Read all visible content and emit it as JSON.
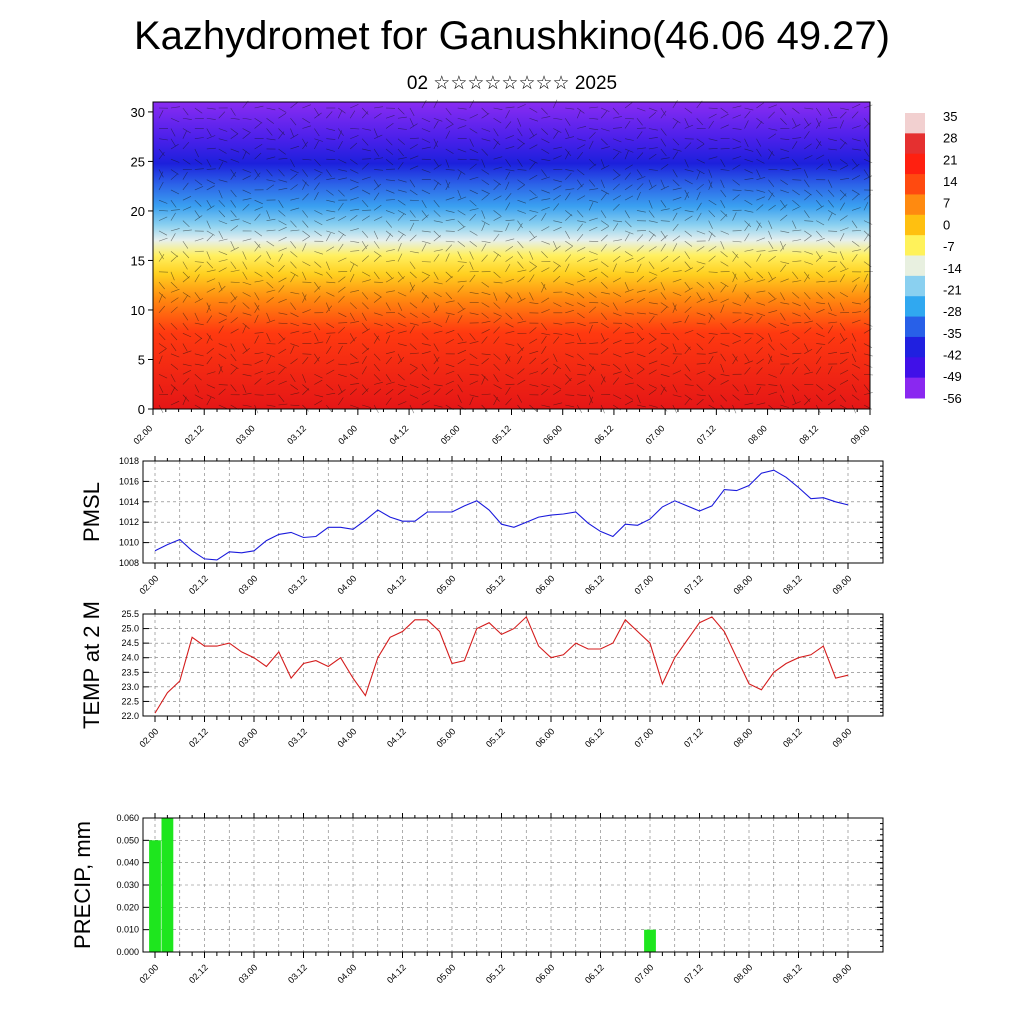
{
  "header": {
    "title": "Kazhydromet for Ganushkino(46.06 49.27)",
    "subtitle": "02 ☆☆☆☆☆☆☆☆ 2025"
  },
  "x_ticks": [
    "02.00",
    "02.12",
    "03.00",
    "03.12",
    "04.00",
    "04.12",
    "05.00",
    "05.12",
    "06.00",
    "06.12",
    "07.00",
    "07.12",
    "08.00",
    "08.12",
    "09.00"
  ],
  "chart_data": [
    {
      "type": "heatmap",
      "y_ticks": [
        0,
        5,
        10,
        15,
        20,
        25,
        30
      ],
      "ylim": [
        0,
        31
      ],
      "colorbar": {
        "labels": [
          "35",
          "28",
          "21",
          "14",
          "7",
          "0",
          "-7",
          "-14",
          "-21",
          "-28",
          "-35",
          "-42",
          "-49",
          "-56"
        ],
        "colors": [
          "#f2d0d0",
          "#e53030",
          "#ff2010",
          "#ff4a10",
          "#ff8a10",
          "#ffc010",
          "#fff25a",
          "#e8f0e0",
          "#8ad0f0",
          "#30a8f0",
          "#2860e8",
          "#2020e0",
          "#4010e8",
          "#8a28f0"
        ]
      }
    },
    {
      "type": "line",
      "ylabel": "PMSL",
      "ylim": [
        1008,
        1018
      ],
      "y_ticks": [
        "1008",
        "1010",
        "1012",
        "1014",
        "1016",
        "1018"
      ],
      "color": "#1a1adc",
      "values": [
        1009.2,
        1009.8,
        1010.3,
        1009.2,
        1008.4,
        1008.3,
        1009.1,
        1009.0,
        1009.2,
        1010.2,
        1010.8,
        1011.0,
        1010.5,
        1010.6,
        1011.5,
        1011.5,
        1011.3,
        1012.2,
        1013.2,
        1012.5,
        1012.1,
        1012.1,
        1013.0,
        1013.0,
        1013.0,
        1013.6,
        1014.1,
        1013.2,
        1011.8,
        1011.5,
        1012.0,
        1012.5,
        1012.7,
        1012.8,
        1013.0,
        1011.9,
        1011.1,
        1010.6,
        1011.8,
        1011.7,
        1012.3,
        1013.5,
        1014.1,
        1013.6,
        1013.1,
        1013.6,
        1015.2,
        1015.1,
        1015.6,
        1016.8,
        1017.1,
        1016.4,
        1015.4,
        1014.3,
        1014.4,
        1014.0,
        1013.7
      ]
    },
    {
      "type": "line",
      "ylabel": "TEMP at 2 M",
      "ylim": [
        22.0,
        25.5
      ],
      "y_ticks": [
        "22.0",
        "22.5",
        "23.0",
        "23.5",
        "24.0",
        "24.5",
        "25.0",
        "25.5"
      ],
      "color": "#d41c1c",
      "values": [
        22.1,
        22.8,
        23.2,
        24.7,
        24.4,
        24.4,
        24.5,
        24.2,
        24.0,
        23.7,
        24.2,
        23.3,
        23.8,
        23.9,
        23.7,
        24.0,
        23.3,
        22.7,
        24.0,
        24.7,
        24.9,
        25.3,
        25.3,
        24.9,
        23.8,
        23.9,
        25.0,
        25.2,
        24.8,
        25.0,
        25.4,
        24.4,
        24.0,
        24.1,
        24.5,
        24.3,
        24.3,
        24.5,
        25.3,
        24.9,
        24.5,
        23.1,
        24.0,
        24.6,
        25.2,
        25.4,
        24.9,
        24.0,
        23.1,
        22.9,
        23.5,
        23.8,
        24.0,
        24.1,
        24.4,
        23.3,
        23.4
      ]
    },
    {
      "type": "bar",
      "ylabel": "PRECIP, mm",
      "ylim": [
        0.0,
        0.06
      ],
      "y_ticks": [
        "0.000",
        "0.010",
        "0.020",
        "0.030",
        "0.040",
        "0.050",
        "0.060"
      ],
      "color": "#1ee61e",
      "values": [
        0.05,
        0.06,
        0,
        0,
        0,
        0,
        0,
        0,
        0,
        0,
        0,
        0,
        0,
        0,
        0,
        0,
        0,
        0,
        0,
        0,
        0,
        0,
        0,
        0,
        0,
        0,
        0,
        0,
        0,
        0,
        0,
        0,
        0,
        0,
        0,
        0,
        0,
        0,
        0,
        0,
        0.01,
        0,
        0,
        0,
        0,
        0,
        0,
        0,
        0,
        0,
        0,
        0,
        0,
        0,
        0,
        0,
        0
      ]
    }
  ]
}
